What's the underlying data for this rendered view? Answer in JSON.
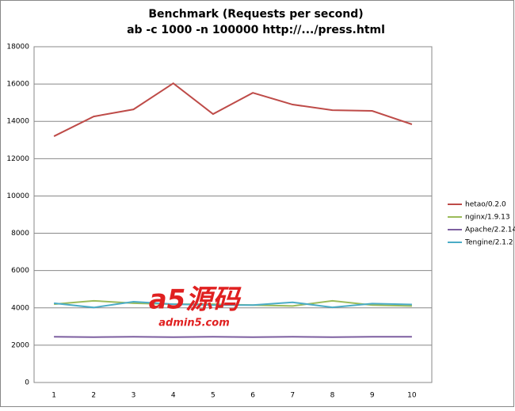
{
  "chart_data": {
    "type": "line",
    "title": "Benchmark (Requests per second)",
    "subtitle": "ab -c 1000 -n 100000 http://.../press.html",
    "categories": [
      1,
      2,
      3,
      4,
      5,
      6,
      7,
      8,
      9,
      10
    ],
    "series": [
      {
        "name": "hetao/0.2.0",
        "color": "#be4b48",
        "values": [
          13200,
          14260,
          14640,
          16040,
          14390,
          15530,
          14900,
          14600,
          14560,
          13840
        ]
      },
      {
        "name": "nginx/1.9.13",
        "color": "#9bbb59",
        "values": [
          4200,
          4380,
          4250,
          4200,
          4200,
          4150,
          4100,
          4380,
          4150,
          4100
        ]
      },
      {
        "name": "Apache/2.2.14",
        "color": "#7d5fa0",
        "values": [
          2450,
          2430,
          2450,
          2430,
          2450,
          2430,
          2450,
          2430,
          2450,
          2450
        ]
      },
      {
        "name": "Tengine/2.1.2",
        "color": "#4bacc6",
        "values": [
          4250,
          4020,
          4330,
          4200,
          4150,
          4150,
          4300,
          4030,
          4230,
          4180
        ]
      }
    ],
    "ylim": [
      0,
      18000
    ],
    "yticks": [
      0,
      2000,
      4000,
      6000,
      8000,
      10000,
      12000,
      14000,
      16000,
      18000
    ],
    "grid": true,
    "legend": "right",
    "annotations": [
      "a5源码",
      "admin5.com"
    ]
  }
}
